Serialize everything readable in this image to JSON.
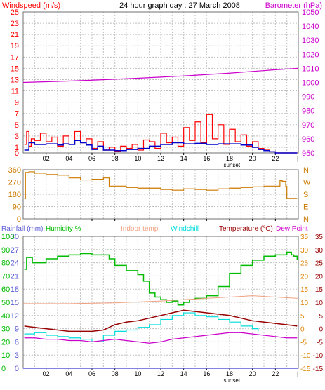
{
  "header": {
    "windspeed_label": "Windspeed (m/s)",
    "title": "24 hour graph day : 27 March 2008",
    "barometer_label": "Barometer (hPa)"
  },
  "colors": {
    "wind_red": "#ff0000",
    "wind_blue": "#0000cc",
    "barometer": "#cc00cc",
    "direction": "#cc7a00",
    "rainfall": "#5c5cd6",
    "humidity": "#00bb00",
    "indoor": "#f0a080",
    "windchill": "#00dddd",
    "temperature": "#990000",
    "dewpoint": "#cc00cc",
    "temp_axis": "#e08000",
    "grid": "#c0c0c0",
    "frame": "#707070",
    "axis_left_top": "#ff0000",
    "axis_right_top": "#cc00cc"
  },
  "x_axis": {
    "ticks": [
      "02",
      "04",
      "06",
      "08",
      "10",
      "12",
      "14",
      "16",
      "18",
      "20",
      "22"
    ],
    "sunset_label": "sunset"
  },
  "chart_data": [
    {
      "type": "line",
      "title": "24 hour graph day : 27 March 2008",
      "x_unit": "hour",
      "left_axis": {
        "label": "Windspeed (m/s)",
        "ticks": [
          "0",
          "1",
          "3",
          "5",
          "7",
          "9",
          "11",
          "13",
          "15",
          "17",
          "19",
          "21",
          "23",
          "25"
        ],
        "ylim": [
          0,
          25
        ]
      },
      "right_axis": {
        "label": "Barometer (hPa)",
        "ticks": [
          "950",
          "960",
          "970",
          "980",
          "990",
          "1000",
          "1010",
          "1020",
          "1030",
          "1040",
          "1050"
        ],
        "ylim": [
          950,
          1050
        ]
      },
      "series": [
        {
          "name": "Windspeed",
          "axis": "left",
          "x": [
            0.1,
            0.3,
            0.5,
            0.7,
            1.0,
            1.5,
            2.0,
            2.5,
            3.0,
            3.5,
            4.0,
            4.5,
            5.0,
            5.5,
            6.0,
            6.5,
            7.0,
            7.5,
            8.0,
            8.5,
            9.0,
            9.5,
            10.0,
            10.5,
            11.0,
            11.5,
            12.0,
            12.5,
            13.0,
            13.5,
            14.0,
            14.5,
            15.0,
            15.5,
            16.0,
            16.5,
            17.0,
            17.5,
            18.0,
            18.5,
            19.0,
            19.5,
            20.0,
            20.5,
            21.0,
            21.5,
            22.0,
            23.0,
            23.9
          ],
          "y": [
            1.5,
            3.8,
            1.2,
            2.5,
            2.2,
            3.5,
            2.0,
            2.8,
            1.2,
            3.0,
            1.5,
            3.8,
            1.8,
            2.5,
            0.8,
            2.0,
            0.5,
            1.0,
            0.3,
            1.2,
            0.8,
            1.5,
            0.5,
            2.3,
            2.0,
            0.8,
            3.5,
            1.8,
            2.8,
            1.2,
            4.5,
            2.2,
            5.5,
            1.8,
            6.8,
            2.5,
            5.0,
            1.5,
            4.2,
            2.0,
            3.2,
            1.2,
            2.0,
            0.8,
            0.5,
            0.2,
            0.0,
            0.0,
            0.0
          ]
        },
        {
          "name": "Average windspeed",
          "axis": "left",
          "x": [
            0.1,
            0.5,
            1.0,
            2.0,
            3.0,
            3.5,
            4.0,
            4.5,
            5.0,
            5.5,
            6.0,
            6.5,
            7.0,
            8.0,
            9.0,
            10.0,
            11.0,
            12.0,
            13.0,
            14.0,
            15.0,
            16.0,
            17.0,
            18.0,
            19.0,
            20.0,
            20.5,
            21.0,
            21.5,
            22.0,
            23.9
          ],
          "y": [
            0.5,
            1.8,
            1.5,
            1.6,
            1.4,
            1.6,
            1.5,
            2.2,
            1.8,
            1.4,
            0.6,
            1.2,
            0.5,
            0.4,
            0.6,
            0.8,
            1.2,
            1.5,
            1.8,
            1.6,
            1.7,
            1.5,
            1.6,
            1.6,
            1.4,
            1.0,
            0.6,
            0.4,
            0.2,
            0.0,
            0.0
          ]
        },
        {
          "name": "Barometer",
          "axis": "right",
          "x": [
            0,
            2,
            4,
            6,
            8,
            10,
            12,
            14,
            16,
            18,
            20,
            22,
            24
          ],
          "y": [
            1000.0,
            1000.5,
            1001.0,
            1001.6,
            1002.3,
            1003.0,
            1003.8,
            1004.6,
            1005.6,
            1006.6,
            1007.8,
            1009.0,
            1010.0
          ]
        }
      ]
    },
    {
      "type": "line",
      "x_unit": "hour",
      "left_axis": {
        "ticks": [
          "360",
          "270",
          "180",
          "90",
          "0"
        ],
        "ylim": [
          0,
          360
        ]
      },
      "right_axis": {
        "ticks": [
          "N",
          "W",
          "S",
          "E",
          "N"
        ]
      },
      "series": [
        {
          "name": "Wind direction",
          "x": [
            0.1,
            0.2,
            0.5,
            1.0,
            2.0,
            3.0,
            4.0,
            5.0,
            6.0,
            7.0,
            7.5,
            8.0,
            9.0,
            10.0,
            11.0,
            12.0,
            13.0,
            14.0,
            15.0,
            16.0,
            17.0,
            18.0,
            19.0,
            20.0,
            21.0,
            22.0,
            22.4,
            22.6,
            22.9,
            23.0,
            23.9
          ],
          "y": [
            150,
            340,
            345,
            335,
            325,
            320,
            300,
            285,
            290,
            300,
            240,
            240,
            230,
            225,
            225,
            215,
            210,
            220,
            215,
            210,
            220,
            225,
            230,
            235,
            240,
            240,
            280,
            275,
            240,
            150,
            150
          ]
        }
      ]
    },
    {
      "type": "line",
      "x_unit": "hour",
      "left_axis": {
        "label": "Rainfall (mm)",
        "ticks": [
          "0",
          "3",
          "6",
          "9",
          "12",
          "15",
          "18",
          "21",
          "24",
          "27",
          "30"
        ],
        "ylim": [
          0,
          30
        ]
      },
      "left_axis_2": {
        "label": "Humidity %",
        "ticks": [
          "0",
          "10",
          "20",
          "30",
          "40",
          "50",
          "60",
          "70",
          "80",
          "90",
          "100"
        ],
        "ylim": [
          0,
          100
        ]
      },
      "right_axis": {
        "label": "Temperature (°C)",
        "ticks": [
          "35",
          "30",
          "25",
          "20",
          "15",
          "10",
          "5",
          "0",
          "-5",
          "-10",
          "-15"
        ],
        "ylim": [
          -15,
          35
        ]
      },
      "legend": [
        "Rainfall (mm)",
        "Humidity %",
        "Indoor temp",
        "Windchill",
        "Temperature (°C)",
        "Dew Point"
      ],
      "series": [
        {
          "name": "Humidity %",
          "x": [
            0.1,
            0.3,
            0.8,
            2.0,
            3.0,
            4.0,
            5.0,
            6.0,
            7.0,
            7.5,
            8.0,
            9.0,
            10.0,
            10.5,
            11.0,
            11.5,
            12.0,
            12.5,
            13.0,
            13.5,
            14.0,
            14.5,
            15.0,
            16.0,
            17.0,
            18.0,
            19.0,
            20.0,
            21.0,
            22.0,
            23.0,
            23.4,
            23.6,
            23.9
          ],
          "y": [
            75,
            84,
            80,
            83,
            85,
            86,
            87,
            86,
            86,
            83,
            78,
            74,
            71,
            66,
            57,
            54,
            52,
            50,
            51,
            48,
            50,
            52,
            53,
            55,
            62,
            72,
            78,
            82,
            85,
            86,
            88,
            86,
            85,
            82
          ]
        },
        {
          "name": "Indoor temp",
          "x": [
            0,
            4,
            8,
            12,
            14,
            16,
            18,
            20,
            22,
            24
          ],
          "y": [
            9.5,
            9.5,
            9.8,
            10.5,
            11.0,
            11.5,
            12.0,
            12.5,
            12.0,
            11.5
          ]
        },
        {
          "name": "Windchill",
          "x": [
            0.1,
            1.0,
            2.0,
            3.0,
            4.0,
            5.0,
            6.0,
            7.0,
            8.0,
            9.0,
            10.0,
            11.0,
            12.0,
            13.0,
            14.0,
            15.0,
            16.0,
            17.0,
            18.0,
            19.0,
            20.0,
            20.5
          ],
          "y": [
            -2.0,
            -1.5,
            -2.5,
            -3.0,
            -3.5,
            -4.0,
            -5.0,
            -2.5,
            -1.0,
            -0.5,
            0.5,
            1.5,
            3.5,
            5.0,
            6.0,
            5.0,
            4.5,
            3.5,
            2.5,
            1.0,
            0.0,
            -1.0
          ]
        },
        {
          "name": "Temperature (°C)",
          "x": [
            0.1,
            1.0,
            2.0,
            3.0,
            4.0,
            5.0,
            6.0,
            7.0,
            8.0,
            9.0,
            10.0,
            11.0,
            12.0,
            13.0,
            14.0,
            15.0,
            16.0,
            17.0,
            18.0,
            19.0,
            20.0,
            21.0,
            22.0,
            23.0,
            23.9
          ],
          "y": [
            1.0,
            0.5,
            0.0,
            -0.5,
            -1.0,
            -1.0,
            -1.0,
            -0.5,
            1.5,
            2.5,
            3.0,
            4.0,
            5.0,
            6.0,
            7.0,
            6.5,
            6.0,
            5.5,
            5.0,
            4.0,
            3.0,
            2.5,
            2.0,
            1.5,
            1.0
          ]
        },
        {
          "name": "Dew Point",
          "x": [
            0.1,
            1.0,
            2.0,
            3.0,
            4.0,
            5.0,
            6.0,
            7.0,
            8.0,
            9.0,
            10.0,
            11.0,
            12.0,
            13.0,
            14.0,
            15.0,
            16.0,
            17.0,
            18.0,
            19.0,
            20.0,
            21.0,
            22.0,
            23.0,
            23.9
          ],
          "y": [
            -3.5,
            -3.5,
            -4.0,
            -4.0,
            -4.5,
            -4.5,
            -5.0,
            -4.5,
            -4.0,
            -4.5,
            -5.0,
            -5.5,
            -5.0,
            -4.0,
            -3.5,
            -3.0,
            -2.5,
            -2.0,
            -1.5,
            -1.5,
            -2.0,
            -2.5,
            -3.0,
            -3.5,
            -3.5
          ]
        },
        {
          "name": "Rainfall (mm)",
          "x": [
            0,
            24
          ],
          "y": [
            0,
            0
          ]
        }
      ]
    }
  ]
}
